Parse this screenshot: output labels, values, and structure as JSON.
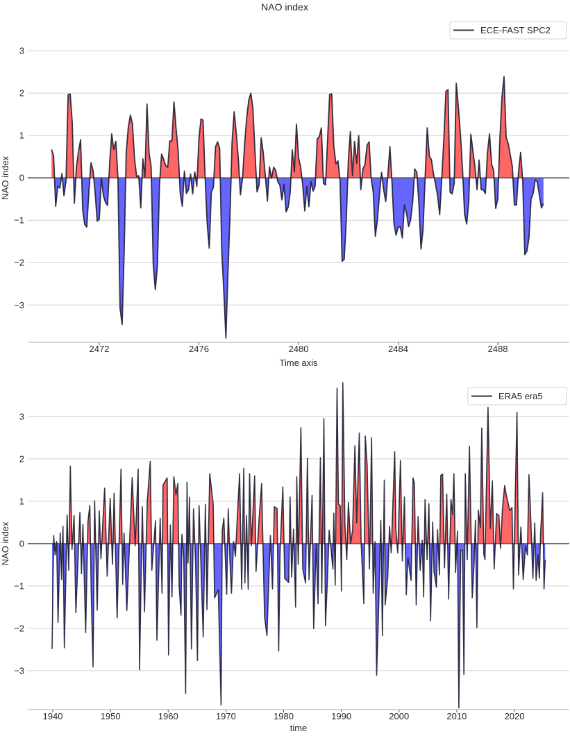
{
  "figure_title": "NAO index",
  "colors": {
    "positive_fill": "#ff5555",
    "negative_fill": "#5555ff",
    "line": "#1a1a30",
    "zero_line": "#555555"
  },
  "chart_data": [
    {
      "type": "area",
      "title": "NAO index",
      "xlabel": "Time axis",
      "ylabel": "NAO index",
      "legend": {
        "label": "ECE-FAST SPC2",
        "position": "top-right"
      },
      "grid": true,
      "xlim": [
        2469.13,
        2490.87
      ],
      "ylim": [
        -3.88,
        3.5
      ],
      "xticks": [
        2472,
        2476,
        2480,
        2484,
        2488
      ],
      "xtick_labels": [
        "2472",
        "2476",
        "2480",
        "2484",
        "2488"
      ],
      "yticks": [
        -3,
        -2,
        -1,
        0,
        1,
        2,
        3
      ],
      "ytick_labels": [
        "−3",
        "−2",
        "−1",
        "0",
        "1",
        "2",
        "3"
      ],
      "x_start": 2470,
      "frequency": "monthly",
      "values": [
        0.67,
        0.52,
        -0.67,
        -0.2,
        -0.24,
        0.1,
        -0.42,
        -0.07,
        1.96,
        1.98,
        1.3,
        -0.6,
        0.26,
        0.62,
        0.9,
        -0.75,
        -1.1,
        -1.16,
        -0.34,
        0.36,
        0.18,
        -0.34,
        -1.02,
        -0.98,
        0,
        -0.42,
        -0.58,
        -0.65,
        0.32,
        1.04,
        0.67,
        0.86,
        -0.01,
        -3.07,
        -3.46,
        -1.7,
        0.59,
        1.19,
        1.48,
        1.27,
        0.45,
        0.03,
        0.05,
        -0.71,
        0.45,
        0.02,
        1.74,
        0.59,
        0.26,
        -2.03,
        -2.64,
        -2.09,
        -0.17,
        0.56,
        0.44,
        0.29,
        0.25,
        0.87,
        0.87,
        1.79,
        1.16,
        0.64,
        -0.37,
        -0.67,
        0.16,
        -0.37,
        -0.28,
        0.09,
        -0.38,
        0.14,
        -0.2,
        0.92,
        1.39,
        1.36,
        -0.02,
        -1.08,
        -1.66,
        -0.34,
        -0.22,
        0.73,
        0.85,
        0.7,
        -1.7,
        -2.69,
        -3.78,
        -2.25,
        -0.89,
        0.86,
        1.56,
        1.05,
        0.45,
        -0.4,
        -0.01,
        0.78,
        1.41,
        1.82,
        2.0,
        1.66,
        0.64,
        -0.33,
        -0.17,
        0.95,
        0.59,
        0.04,
        -0.55,
        0.26,
        -0.01,
        0.25,
        0.18,
        -0.09,
        -0.17,
        -0.52,
        -0.15,
        -0.8,
        -0.69,
        -0.34,
        0.66,
        0.14,
        1.27,
        0.48,
        0.26,
        -0.17,
        -0.78,
        -0.2,
        -0.68,
        -0.09,
        -0.31,
        -0.2,
        0.92,
        0.97,
        1.18,
        -0.13,
        -0.17,
        0.92,
        1.97,
        1.98,
        0.75,
        0.33,
        0.4,
        -0.07,
        -1.97,
        -1.92,
        -0.99,
        0.44,
        1.09,
        0.05,
        0.86,
        0.34,
        1.0,
        -0.28,
        0.21,
        0.31,
        0.77,
        0.85,
        -0.01,
        -0.34,
        -1.38,
        -0.99,
        -0.39,
        0.13,
        -0.28,
        -0.56,
        0.04,
        0.74,
        -0.07,
        -1.08,
        -1.35,
        -1.16,
        -1.16,
        -1.42,
        -0.64,
        -0.83,
        -1.15,
        -0.99,
        -0.56,
        0.21,
        0.13,
        -0.61,
        -1.68,
        -1.21,
        0.04,
        1.18,
        0.51,
        0.43,
        0.1,
        -0.15,
        -0.42,
        -0.87,
        -0.01,
        0.92,
        2.04,
        2.08,
        -0.34,
        -0.38,
        -0.13,
        2.23,
        1.68,
        1.03,
        0.21,
        -0.86,
        -1.09,
        -0.56,
        1.03,
        0.64,
        0.26,
        -0.28,
        0.42,
        -0.28,
        -0.28,
        -0.37,
        0.59,
        1.04,
        0.32,
        0.18,
        -0.72,
        -0.5,
        0.92,
        1.9,
        2.39,
        0.96,
        0.81,
        0.54,
        0.26,
        -0.64,
        -0.64,
        0.15,
        0.6,
        -0.07,
        -1.81,
        -1.73,
        -1.42,
        -0.5,
        -0.37,
        -0.05,
        -0.09,
        -0.39,
        -0.71,
        -0.61
      ]
    },
    {
      "type": "area",
      "xlabel": "time",
      "ylabel": "NAO index",
      "legend": {
        "label": "ERA5 era5",
        "position": "top-right"
      },
      "grid": true,
      "xlim": [
        1935.67,
        2029.5
      ],
      "ylim": [
        -3.92,
        3.9
      ],
      "xticks": [
        1940,
        1950,
        1960,
        1970,
        1980,
        1990,
        2000,
        2010,
        2020
      ],
      "xtick_labels": [
        "1940",
        "1950",
        "1960",
        "1970",
        "1980",
        "1990",
        "2000",
        "2010",
        "2020"
      ],
      "yticks": [
        -3,
        -2,
        -1,
        0,
        1,
        2,
        3
      ],
      "ytick_labels": [
        "−3",
        "−2",
        "−1",
        "0",
        "1",
        "2",
        "3"
      ],
      "x": [
        1939.88,
        1940.16,
        1940.4,
        1940.68,
        1940.92,
        1941.29,
        1941.53,
        1941.77,
        1942.01,
        1942.49,
        1942.77,
        1943.05,
        1943.33,
        1943.69,
        1944.01,
        1944.7,
        1944.98,
        1945.22,
        1945.7,
        1946.1,
        1946.42,
        1946.66,
        1946.98,
        1947.26,
        1947.7,
        1948.06,
        1948.35,
        1948.99,
        1949.43,
        1949.95,
        1950.35,
        1950.63,
        1951.15,
        1951.83,
        1952.12,
        1952.36,
        1952.84,
        1953.76,
        1954.28,
        1954.8,
        1955.04,
        1955.52,
        1955.89,
        1956.37,
        1956.89,
        1957.17,
        1957.81,
        1958.05,
        1958.33,
        1958.61,
        1958.93,
        1959.1,
        1959.82,
        1960.06,
        1960.38,
        1960.66,
        1960.98,
        1961.34,
        1961.66,
        1961.9,
        1962.22,
        1962.38,
        1962.7,
        1963.03,
        1963.27,
        1963.43,
        1963.67,
        1964.03,
        1964.39,
        1964.75,
        1965.07,
        1965.35,
        1966.07,
        1966.44,
        1966.72,
        1967.2,
        1967.8,
        1968.04,
        1968.68,
        1969.16,
        1969.36,
        1969.64,
        1970.13,
        1970.41,
        1970.69,
        1970.97,
        1971.33,
        1971.65,
        1971.93,
        1972.37,
        1972.73,
        1973.09,
        1973.29,
        1973.58,
        1973.86,
        1974.1,
        1974.42,
        1974.98,
        1975.22,
        1975.7,
        1976.18,
        1976.7,
        1977.11,
        1977.47,
        1977.71,
        1978.07,
        1978.39,
        1978.87,
        1979.15,
        1979.39,
        1979.87,
        1980.19,
        1980.88,
        1981.12,
        1981.4,
        1981.72,
        1982.08,
        1982.28,
        1982.52,
        1983.0,
        1983.32,
        1983.8,
        1984.12,
        1984.4,
        1984.93,
        1985.21,
        1985.65,
        1985.97,
        1986.37,
        1986.61,
        1986.97,
        1987.25,
        1987.61,
        1987.89,
        1988.54,
        1988.7,
        1988.94,
        1989.26,
        1989.5,
        1989.82,
        1990.02,
        1990.26,
        1990.62,
        1990.94,
        1991.22,
        1991.62,
        1991.95,
        1992.35,
        1992.67,
        1993.11,
        1993.43,
        1993.91,
        1994.15,
        1994.47,
        1994.87,
        1995.24,
        1995.52,
        1995.84,
        1996.12,
        1996.44,
        1996.84,
        1997.12,
        1997.44,
        1997.6,
        1998.04,
        1998.36,
        1998.64,
        1999.25,
        1999.45,
        1999.77,
        2000.25,
        2000.57,
        2000.93,
        2001.25,
        2001.53,
        2002.09,
        2002.42,
        2002.66,
        2002.98,
        2003.3,
        2003.66,
        2004.02,
        2004.26,
        2004.5,
        2004.86,
        2005.18,
        2005.46,
        2005.82,
        2006.06,
        2006.47,
        2006.67,
        2006.99,
        2007.23,
        2007.55,
        2007.87,
        2008.27,
        2008.59,
        2008.99,
        2009.27,
        2009.51,
        2009.8,
        2010.12,
        2010.36,
        2010.68,
        2011.0,
        2011.24,
        2011.48,
        2011.8,
        2012.2,
        2012.68,
        2013.0,
        2013.24,
        2013.49,
        2013.73,
        2014.09,
        2014.33,
        2014.69,
        2014.89,
        2015.41,
        2015.81,
        2016.17,
        2016.49,
        2016.9,
        2017.3,
        2017.58,
        2017.9,
        2018.3,
        2018.58,
        2019.18,
        2019.58,
        2019.82,
        2020.43,
        2020.71,
        2021.11,
        2021.51,
        2021.91,
        2022.23,
        2022.51,
        2022.79,
        2023.19,
        2023.51,
        2023.75,
        2024.08,
        2024.32,
        2024.52,
        2024.88,
        2025.12,
        2025.32
      ],
      "y": [
        -2.49,
        0.19,
        -0.27,
        0.05,
        -1.86,
        0.25,
        -0.85,
        0.41,
        -2.46,
        0.68,
        -0.63,
        1.83,
        -0.14,
        0.66,
        -1.63,
        0.74,
        -0.71,
        0.45,
        -2.1,
        0.52,
        0.9,
        -1.15,
        -2.91,
        1.01,
        -1.57,
        0.77,
        -0.36,
        1.31,
        -0.77,
        1.07,
        -0.49,
        1.19,
        -1.75,
        1.76,
        -0.96,
        0.25,
        -1.58,
        1.56,
        -0.05,
        1.76,
        -2.98,
        0.87,
        -1.61,
        0.99,
        1.94,
        -0.63,
        0.54,
        -2.28,
        -0.85,
        0.6,
        -1.17,
        1.38,
        1.55,
        -2.63,
        0.44,
        -1.26,
        1.58,
        1.15,
        1.42,
        -0.98,
        -1.69,
        0.22,
        -0.36,
        -3.54,
        1.45,
        -0.46,
        1.09,
        -2.49,
        0.82,
        -0.44,
        -2.76,
        0.9,
        -2.2,
        0.93,
        -1.56,
        1.65,
        0.93,
        -1.28,
        -1.09,
        -3.81,
        0.3,
        0.6,
        -1.2,
        0.82,
        -0.38,
        -1.17,
        0.05,
        -0.3,
        0.49,
        1.65,
        -1.08,
        1.78,
        -0.93,
        0.66,
        -1.08,
        1.65,
        -0.05,
        1.6,
        -0.66,
        0.49,
        1.42,
        -1.74,
        -2.17,
        -0.71,
        0.19,
        -1.07,
        0.87,
        0.83,
        -2.54,
        -0.2,
        1.34,
        -0.82,
        -0.92,
        1.1,
        -0.79,
        0.34,
        -1.5,
        1.58,
        -0.49,
        2.74,
        -0.6,
        -0.93,
        2.02,
        -0.85,
        1.14,
        -2.01,
        0.0,
        -1.42,
        2.03,
        -1.17,
        2.95,
        -1.94,
        -0.77,
        0.32,
        -0.6,
        0.72,
        -0.98,
        3.67,
        0.93,
        0.9,
        -1.12,
        3.8,
        0.46,
        -0.38,
        0.97,
        0.0,
        0.33,
        2.31,
        0.49,
        2.61,
        0.0,
        -1.42,
        2.54,
        1.86,
        -0.6,
        2.5,
        -1.17,
        0.05,
        -3.11,
        -1.64,
        0.55,
        -2.17,
        1.5,
        -1.45,
        -0.79,
        0.41,
        -0.22,
        2.17,
        0.33,
        -0.22,
        1.96,
        -0.41,
        1.1,
        -1.21,
        -0.33,
        -0.87,
        1.55,
        1.42,
        -1.45,
        0.64,
        -0.63,
        0.08,
        -1.26,
        1.04,
        -0.38,
        0.94,
        -1.82,
        0.51,
        -0.66,
        -1.03,
        0.33,
        -0.74,
        1.61,
        1.64,
        -0.57,
        1.17,
        -1.31,
        1.04,
        0.68,
        1.65,
        -0.68,
        0.3,
        -3.88,
        -0.16,
        -0.16,
        -3.09,
        1.65,
        -0.38,
        2.3,
        -1.28,
        -0.49,
        0.55,
        -1.98,
        0.79,
        0.38,
        2.73,
        -0.25,
        -0.38,
        3.22,
        0.36,
        1.48,
        -0.6,
        0.71,
        0.66,
        -0.11,
        0.79,
        1.37,
        1.15,
        0.78,
        0.85,
        -1.07,
        3.1,
        -0.74,
        0.39,
        -0.85,
        -0.05,
        -0.27,
        1.63,
        0.72,
        -0.82,
        0.49,
        -0.87,
        -0.26,
        -0.82,
        0.22,
        1.2,
        -1.07,
        -0.38
      ]
    }
  ]
}
